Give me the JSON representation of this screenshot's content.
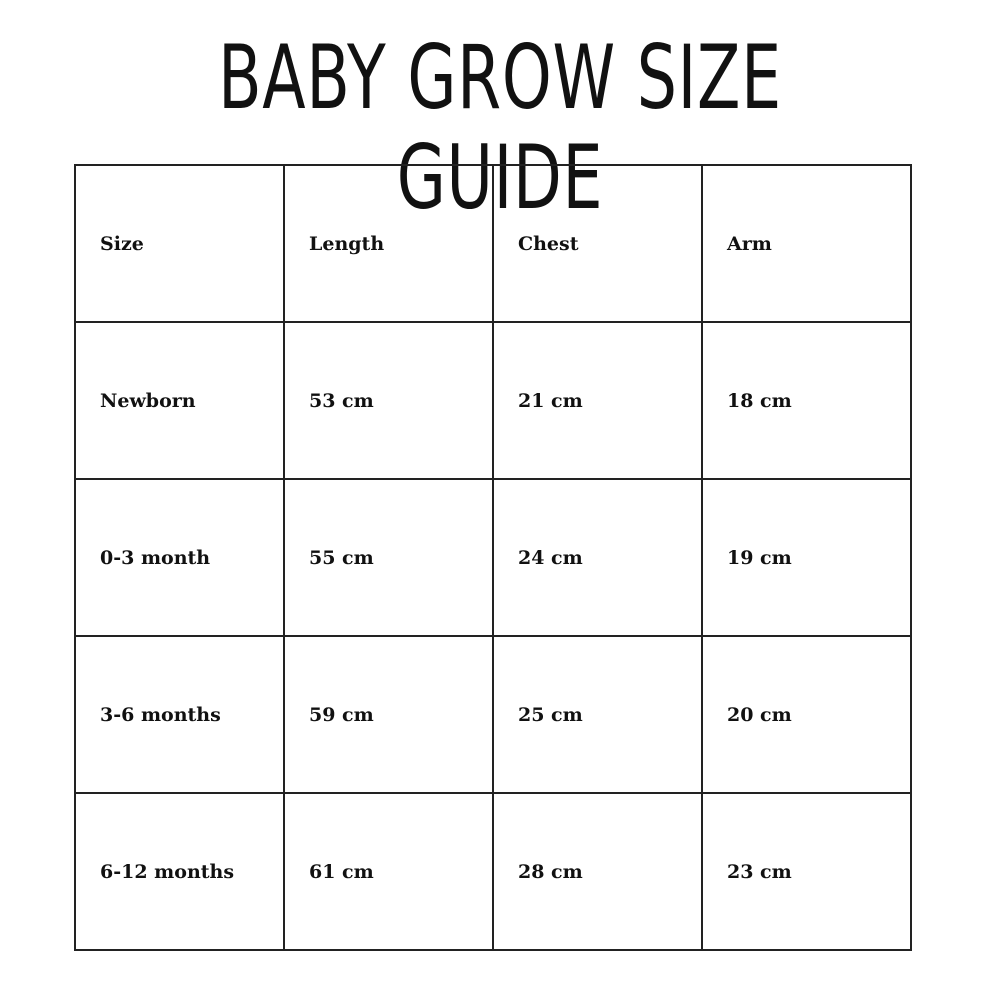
{
  "title": "BABY GROW SIZE GUIDE",
  "table": {
    "headers": [
      "Size",
      "Length",
      "Chest",
      "Arm"
    ],
    "rows": [
      [
        "Newborn",
        "53 cm",
        "21 cm",
        "18 cm"
      ],
      [
        "0-3 month",
        "55 cm",
        "24 cm",
        "19 cm"
      ],
      [
        "3-6 months",
        "59 cm",
        "25 cm",
        "20 cm"
      ],
      [
        "6-12 months",
        "61 cm",
        "28 cm",
        "23 cm"
      ]
    ]
  }
}
